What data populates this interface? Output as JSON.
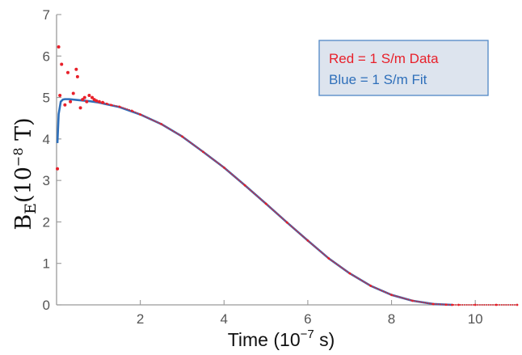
{
  "chart_data": {
    "type": "scatter",
    "title": "",
    "xlabel": {
      "prefix": "Time (10",
      "exponent": "−7",
      "suffix": " s)"
    },
    "ylabel": {
      "base": "B",
      "subscript": "E",
      "prefix": "(10",
      "exponent": "−8",
      "suffix": " T)"
    },
    "xlim": [
      0,
      11
    ],
    "ylim": [
      0,
      7
    ],
    "x_ticks": [
      "2",
      "4",
      "6",
      "8",
      "10"
    ],
    "x_tick_values": [
      2,
      4,
      6,
      8,
      10
    ],
    "y_ticks": [
      "0",
      "1",
      "2",
      "3",
      "4",
      "5",
      "6",
      "7"
    ],
    "y_tick_values": [
      0,
      1,
      2,
      3,
      4,
      5,
      6,
      7
    ],
    "grid": false,
    "legend_position": "top-right",
    "legend": [
      {
        "label": "Red = 1 S/m Data",
        "color": "#e8202a"
      },
      {
        "label": "Blue = 1 S/m Fit",
        "color": "#2e6fba"
      }
    ],
    "series": [
      {
        "kind": "scatter",
        "color": "#e8202a",
        "x": [
          0.02,
          0.05,
          0.08,
          0.12,
          0.2,
          0.27,
          0.33,
          0.4,
          0.47,
          0.5,
          0.57,
          0.62,
          0.67,
          0.72,
          0.78,
          0.85,
          0.9,
          0.95,
          1.02,
          1.1,
          1.2,
          1.3,
          1.5,
          1.8,
          2.0,
          2.5,
          3.0,
          3.5,
          4.0,
          4.5,
          5.0,
          5.5,
          6.0,
          6.5,
          7.0,
          7.5,
          8.0,
          8.5,
          9.0,
          9.3,
          9.45,
          9.6,
          10.0,
          10.5,
          11.0
        ],
        "y": [
          3.28,
          6.22,
          5.05,
          5.8,
          4.82,
          5.6,
          4.9,
          5.1,
          5.68,
          5.5,
          4.75,
          4.95,
          5.0,
          4.9,
          5.05,
          5.0,
          4.95,
          4.92,
          4.9,
          4.88,
          4.85,
          4.82,
          4.78,
          4.68,
          4.59,
          4.36,
          4.06,
          3.69,
          3.31,
          2.88,
          2.44,
          1.99,
          1.55,
          1.12,
          0.76,
          0.46,
          0.24,
          0.1,
          0.02,
          0.005,
          0,
          0,
          0,
          0,
          0
        ]
      },
      {
        "kind": "line",
        "color": "#2e6fba",
        "x": [
          0.02,
          0.05,
          0.1,
          0.15,
          0.2,
          0.3,
          0.5,
          0.8,
          1.0,
          1.5,
          2.0,
          2.5,
          3.0,
          3.5,
          4.0,
          4.5,
          5.0,
          5.5,
          6.0,
          6.5,
          7.0,
          7.5,
          8.0,
          8.5,
          9.0,
          9.45
        ],
        "y": [
          3.9,
          4.6,
          4.9,
          4.95,
          4.96,
          4.96,
          4.94,
          4.91,
          4.88,
          4.77,
          4.59,
          4.36,
          4.06,
          3.69,
          3.31,
          2.88,
          2.44,
          1.99,
          1.55,
          1.12,
          0.76,
          0.46,
          0.24,
          0.1,
          0.02,
          0
        ]
      }
    ]
  }
}
